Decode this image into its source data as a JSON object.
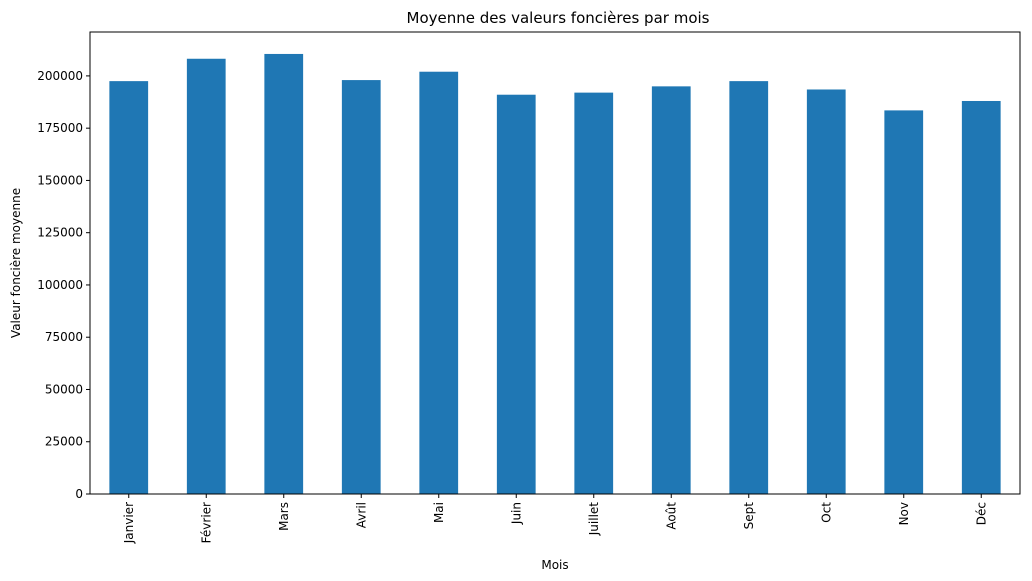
{
  "chart_data": {
    "type": "bar",
    "title": "Moyenne des valeurs foncières par mois",
    "xlabel": "Mois",
    "ylabel": "Valeur foncière moyenne",
    "categories": [
      "Janvier",
      "Février",
      "Mars",
      "Avril",
      "Mai",
      "Juin",
      "Juillet",
      "Août",
      "Sept",
      "Oct",
      "Nov",
      "Déc"
    ],
    "values": [
      197500,
      208200,
      210500,
      198000,
      202000,
      191000,
      192000,
      195000,
      197500,
      193500,
      183500,
      188000
    ],
    "ylim": [
      0,
      221000
    ],
    "yticks": [
      0,
      25000,
      50000,
      75000,
      100000,
      125000,
      150000,
      175000,
      200000
    ],
    "ytick_labels": [
      "0",
      "25000",
      "50000",
      "75000",
      "100000",
      "125000",
      "150000",
      "175000",
      "200000"
    ],
    "grid": false,
    "legend": "none",
    "bar_color": "#1f77b4"
  }
}
